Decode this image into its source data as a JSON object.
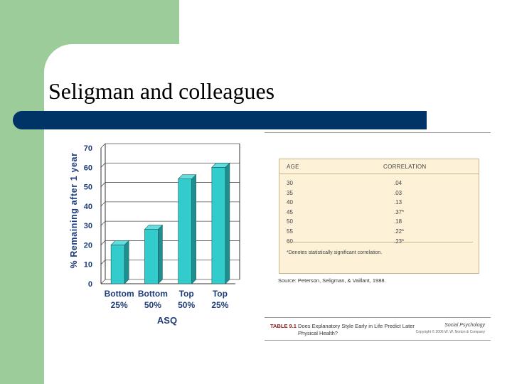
{
  "slide": {
    "title": "Seligman and colleagues"
  },
  "chart_data": {
    "type": "bar",
    "categories": [
      [
        "Bottom",
        "25%"
      ],
      [
        "Bottom",
        "50%"
      ],
      [
        "Top",
        "50%"
      ],
      [
        "Top",
        "25%"
      ]
    ],
    "values": [
      20,
      28,
      54,
      60
    ],
    "title": "",
    "xlabel": "ASQ",
    "ylabel": "% Remaining after 1 year",
    "ylim": [
      0,
      70
    ],
    "yticks": [
      0,
      10,
      20,
      30,
      40,
      50,
      60,
      70
    ],
    "grid": true,
    "bar_color": "#33cccc",
    "bar_side_color": "#1e8f8f",
    "bar_top_color": "#66dddd"
  },
  "table": {
    "headers": [
      "AGE",
      "CORRELATION"
    ],
    "rows": [
      [
        "30",
        ".04"
      ],
      [
        "35",
        ".03"
      ],
      [
        "40",
        ".13"
      ],
      [
        "45",
        ".37*"
      ],
      [
        "50",
        ".18"
      ],
      [
        "55",
        ".22*"
      ],
      [
        "60",
        ".23*"
      ]
    ],
    "note": "*Denotes statistically significant correlation.",
    "source": "Source: Peterson, Seligman, & Vaillant, 1988.",
    "caption_label": "TABLE 9.1",
    "caption_text": "Does Explanatory Style Early in Life Predict Later Physical Health?",
    "brand": "Social Psychology",
    "copyright": "Copyright © 2006 W. W. Norton & Company"
  }
}
